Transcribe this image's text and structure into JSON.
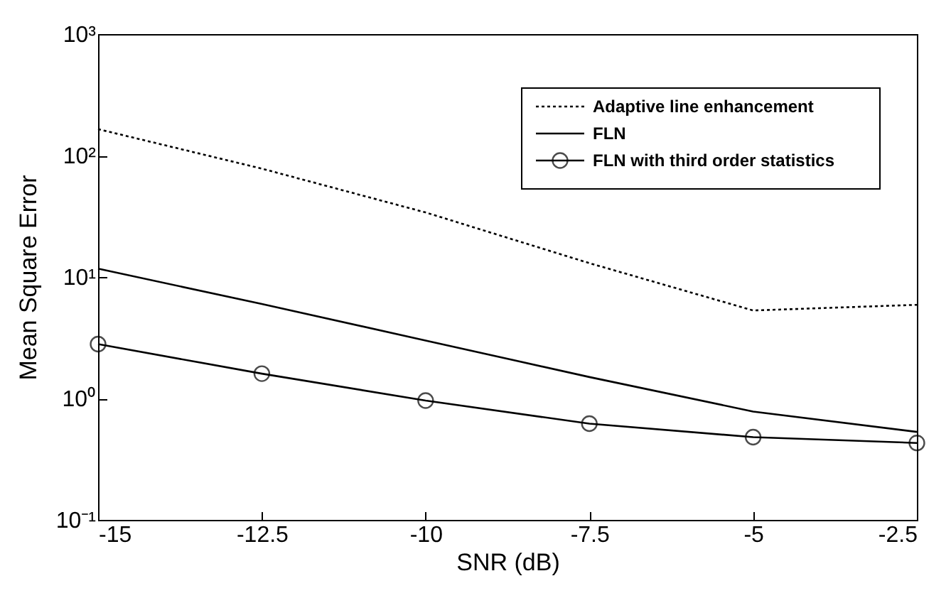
{
  "chart_data": {
    "type": "line",
    "xlabel": "SNR  (dB)",
    "ylabel": "Mean Square Error",
    "x": [
      -15,
      -12.5,
      -10,
      -7.5,
      -5,
      -2.5
    ],
    "series": [
      {
        "name": "Adaptive line enhancement",
        "color": "#000000",
        "line_style": "dotted",
        "marker": "none",
        "values": [
          165,
          78,
          34,
          13,
          5.3,
          5.9
        ]
      },
      {
        "name": "FLN",
        "color": "#000000",
        "line_style": "solid",
        "marker": "none",
        "values": [
          11.7,
          6.0,
          3.0,
          1.5,
          0.78,
          0.53
        ]
      },
      {
        "name": "FLN with third order statistics",
        "color": "#000000",
        "line_style": "solid",
        "marker": "circle",
        "values": [
          2.8,
          1.6,
          0.96,
          0.62,
          0.48,
          0.43
        ]
      }
    ],
    "log": "y",
    "xlim": [
      -15,
      -2.5
    ],
    "xticks": [
      -15,
      -12.5,
      -10,
      -7.5,
      -5,
      -2.5
    ],
    "ylim": [
      0.1,
      1000
    ],
    "yticks": [
      {
        "value": 0.1,
        "label": "10⁻¹"
      },
      {
        "value": 1,
        "label": "10⁰"
      },
      {
        "value": 10,
        "label": "10¹"
      },
      {
        "value": 100,
        "label": "10²"
      },
      {
        "value": 1000,
        "label": "10³"
      }
    ],
    "grid": false,
    "legend": "top right"
  }
}
